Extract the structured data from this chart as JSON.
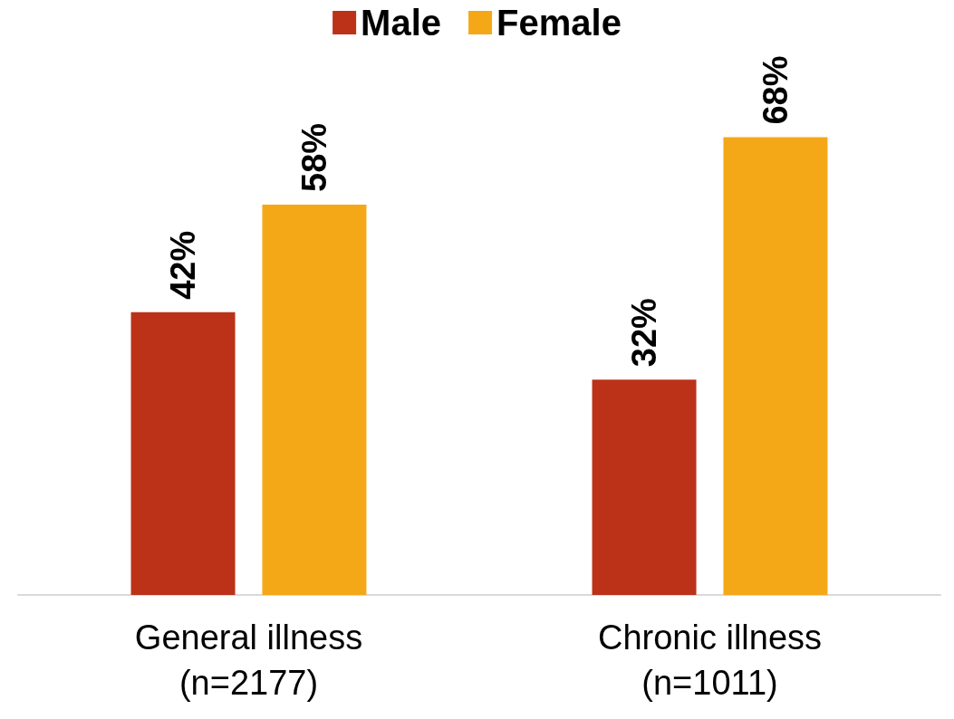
{
  "chart_data": {
    "type": "bar",
    "categories": [
      "General illness\n(n=2177)",
      "Chronic illness\n(n=1011)"
    ],
    "series": [
      {
        "name": "Male",
        "color": "#bb3219",
        "values": [
          42,
          32
        ],
        "value_labels": [
          "42%",
          "32%"
        ]
      },
      {
        "name": "Female",
        "color": "#f5a817",
        "values": [
          58,
          68
        ],
        "value_labels": [
          "58%",
          "68%"
        ]
      }
    ],
    "legend": "top"
  }
}
